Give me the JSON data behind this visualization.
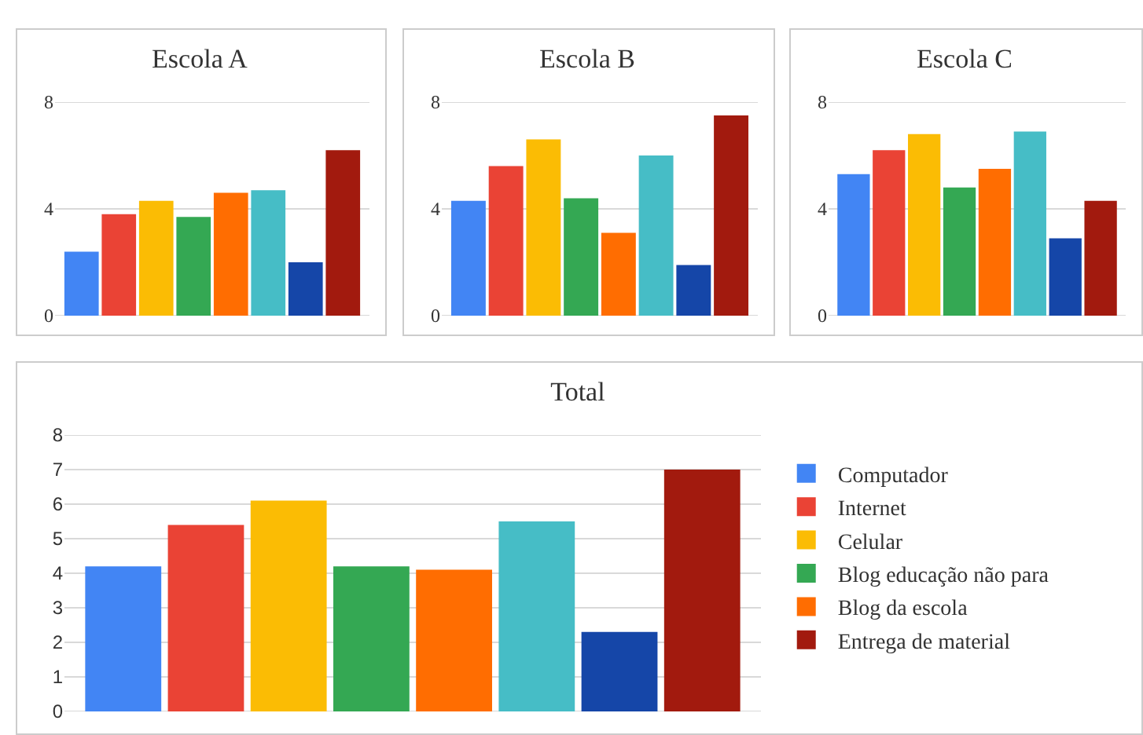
{
  "chart_data": [
    {
      "type": "bar",
      "title": "Escola A",
      "categories": [
        null
      ],
      "ylim": [
        0,
        8
      ],
      "yticks": [
        0,
        4,
        8
      ],
      "grid": "y",
      "legend": false,
      "series": [
        {
          "color": "#4285f4",
          "values": [
            2.4
          ]
        },
        {
          "color": "#ea4335",
          "values": [
            3.8
          ]
        },
        {
          "color": "#fbbc04",
          "values": [
            4.3
          ]
        },
        {
          "color": "#34a853",
          "values": [
            3.7
          ]
        },
        {
          "color": "#ff6d01",
          "values": [
            4.6
          ]
        },
        {
          "color": "#46bdc6",
          "values": [
            4.7
          ]
        },
        {
          "color": "#1546a8",
          "values": [
            2.0
          ]
        },
        {
          "color": "#a21a0e",
          "values": [
            6.2
          ]
        }
      ]
    },
    {
      "type": "bar",
      "title": "Escola B",
      "categories": [
        null
      ],
      "ylim": [
        0,
        8
      ],
      "yticks": [
        0,
        4,
        8
      ],
      "grid": "y",
      "legend": false,
      "series": [
        {
          "color": "#4285f4",
          "values": [
            4.3
          ]
        },
        {
          "color": "#ea4335",
          "values": [
            5.6
          ]
        },
        {
          "color": "#fbbc04",
          "values": [
            6.6
          ]
        },
        {
          "color": "#34a853",
          "values": [
            4.4
          ]
        },
        {
          "color": "#ff6d01",
          "values": [
            3.1
          ]
        },
        {
          "color": "#46bdc6",
          "values": [
            6.0
          ]
        },
        {
          "color": "#1546a8",
          "values": [
            1.9
          ]
        },
        {
          "color": "#a21a0e",
          "values": [
            7.5
          ]
        }
      ]
    },
    {
      "type": "bar",
      "title": "Escola C",
      "categories": [
        null
      ],
      "ylim": [
        0,
        8
      ],
      "yticks": [
        0,
        4,
        8
      ],
      "grid": "y",
      "legend": false,
      "series": [
        {
          "color": "#4285f4",
          "values": [
            5.3
          ]
        },
        {
          "color": "#ea4335",
          "values": [
            6.2
          ]
        },
        {
          "color": "#fbbc04",
          "values": [
            6.8
          ]
        },
        {
          "color": "#34a853",
          "values": [
            4.8
          ]
        },
        {
          "color": "#ff6d01",
          "values": [
            5.5
          ]
        },
        {
          "color": "#46bdc6",
          "values": [
            6.9
          ]
        },
        {
          "color": "#1546a8",
          "values": [
            2.9
          ]
        },
        {
          "color": "#a21a0e",
          "values": [
            4.3
          ]
        }
      ]
    },
    {
      "type": "bar",
      "title": "Total",
      "categories": [
        null
      ],
      "ylim": [
        0,
        8
      ],
      "yticks": [
        0,
        1,
        2,
        3,
        4,
        5,
        6,
        7,
        8
      ],
      "grid": "y",
      "legend": "right",
      "series": [
        {
          "name": "Computador",
          "color": "#4285f4",
          "values": [
            4.2
          ]
        },
        {
          "name": "Internet",
          "color": "#ea4335",
          "values": [
            5.4
          ]
        },
        {
          "name": "Celular",
          "color": "#fbbc04",
          "values": [
            6.1
          ]
        },
        {
          "name": "Blog educação não para",
          "color": "#34a853",
          "values": [
            4.2
          ]
        },
        {
          "name": "Blog da escola",
          "color": "#ff6d01",
          "values": [
            4.1
          ]
        },
        {
          "color": "#46bdc6",
          "values": [
            5.5
          ]
        },
        {
          "color": "#1546a8",
          "values": [
            2.3
          ]
        },
        {
          "name": "Entrega de material",
          "color": "#a21a0e",
          "values": [
            7.0
          ]
        }
      ]
    }
  ]
}
